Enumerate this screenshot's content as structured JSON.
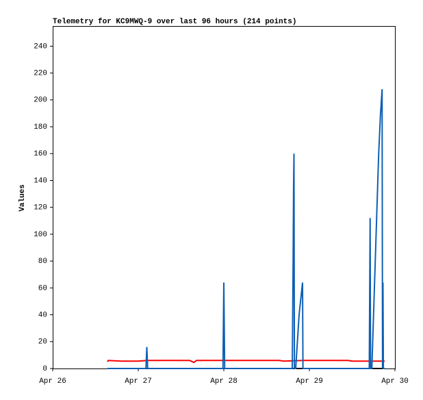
{
  "chart_data": {
    "type": "line",
    "title": "Telemetry for KC9MWQ-9 over last 96 hours (214 points)",
    "y_label": "Values",
    "xlim": [
      26,
      30
    ],
    "xticks": [
      {
        "value": 26,
        "label": "Apr 26"
      },
      {
        "value": 27,
        "label": "Apr 27"
      },
      {
        "value": 28,
        "label": "Apr 28"
      },
      {
        "value": 29,
        "label": "Apr 29"
      },
      {
        "value": 30,
        "label": "Apr 30"
      }
    ],
    "ylim": [
      0,
      255
    ],
    "yticks": [
      0,
      20,
      40,
      60,
      80,
      100,
      120,
      140,
      160,
      180,
      200,
      220,
      240
    ],
    "series": [
      {
        "color": "#000000",
        "x": [
          26.64,
          29.88
        ],
        "values": [
          0,
          0
        ]
      },
      {
        "color": "#ff0000",
        "x": [
          26.64,
          26.65,
          26.8,
          27.0,
          27.1,
          27.6,
          27.65,
          27.68,
          28.65,
          28.7,
          28.93,
          29.45,
          29.5,
          29.88
        ],
        "values": [
          5,
          6,
          5.5,
          5.5,
          6,
          6,
          4.5,
          6,
          6,
          5.5,
          6,
          6,
          5.5,
          5.5
        ]
      },
      {
        "color": "#0f5fb4",
        "x": [
          26.64,
          27.09,
          27.1,
          27.11,
          27.99,
          28.0,
          28.01,
          28.8,
          28.81,
          28.815,
          28.82,
          28.825,
          28.84,
          28.86,
          28.88,
          28.9,
          28.92,
          28.925,
          29.7,
          29.71,
          29.715,
          29.73,
          29.75,
          29.77,
          29.79,
          29.81,
          29.83,
          29.85,
          29.855,
          29.86,
          29.865,
          29.88
        ],
        "values": [
          0,
          0,
          16,
          0,
          0,
          64,
          0,
          0,
          80,
          133,
          160,
          0,
          0,
          20,
          40,
          52,
          64,
          0,
          0,
          112,
          0,
          0,
          40,
          80,
          120,
          160,
          188,
          208,
          0,
          64,
          0,
          0
        ]
      }
    ]
  }
}
